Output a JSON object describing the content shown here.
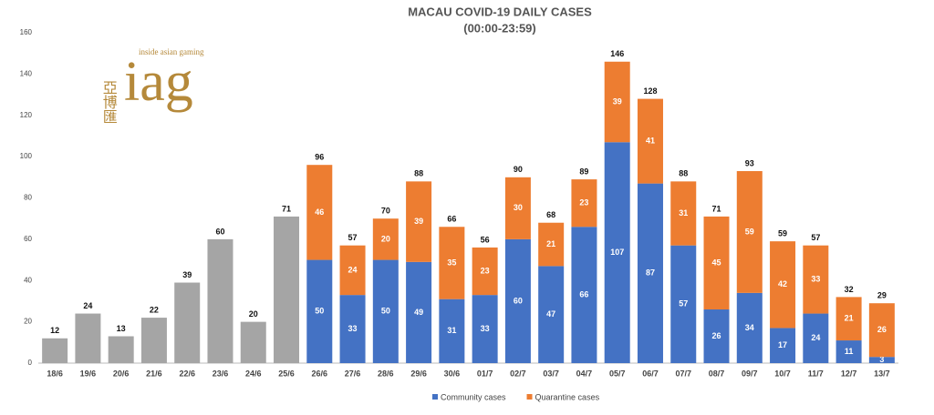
{
  "chart_data": {
    "type": "bar",
    "stacked": true,
    "title": "MACAU COVID-19 DAILY CASES",
    "subtitle": "(00:00-23:59)",
    "logo": {
      "mark": "iag",
      "tagline": "inside asian gaming",
      "chinese": "亞博匯"
    },
    "categories": [
      "18/6",
      "19/6",
      "20/6",
      "21/6",
      "22/6",
      "23/6",
      "24/6",
      "25/6",
      "26/6",
      "27/6",
      "28/6",
      "29/6",
      "30/6",
      "01/7",
      "02/7",
      "03/7",
      "04/7",
      "05/7",
      "06/7",
      "07/7",
      "08/7",
      "09/7",
      "10/7",
      "11/7",
      "12/7",
      "13/7"
    ],
    "series": [
      {
        "color": "#a5a5a5",
        "values": [
          12,
          24,
          13,
          22,
          39,
          60,
          20,
          71,
          null,
          null,
          null,
          null,
          null,
          null,
          null,
          null,
          null,
          null,
          null,
          null,
          null,
          null,
          null,
          null,
          null,
          null
        ]
      },
      {
        "name": "Community cases",
        "color": "#4472c4",
        "values": [
          null,
          null,
          null,
          null,
          null,
          null,
          null,
          null,
          50,
          33,
          50,
          49,
          31,
          33,
          60,
          47,
          66,
          107,
          87,
          57,
          26,
          34,
          17,
          24,
          11,
          3
        ]
      },
      {
        "name": "Quarantine cases",
        "color": "#ed7d31",
        "values": [
          null,
          null,
          null,
          null,
          null,
          null,
          null,
          null,
          46,
          24,
          20,
          39,
          35,
          23,
          30,
          21,
          23,
          39,
          41,
          31,
          45,
          59,
          42,
          33,
          21,
          26
        ]
      }
    ],
    "totals": [
      null,
      null,
      null,
      null,
      null,
      null,
      null,
      null,
      96,
      57,
      70,
      88,
      66,
      56,
      90,
      68,
      89,
      146,
      128,
      88,
      71,
      93,
      59,
      57,
      32,
      29
    ],
    "ylim": [
      0,
      160
    ],
    "yticks": [
      0,
      20,
      40,
      60,
      80,
      100,
      120,
      140,
      160
    ],
    "grid": false,
    "legend": "bottom"
  }
}
